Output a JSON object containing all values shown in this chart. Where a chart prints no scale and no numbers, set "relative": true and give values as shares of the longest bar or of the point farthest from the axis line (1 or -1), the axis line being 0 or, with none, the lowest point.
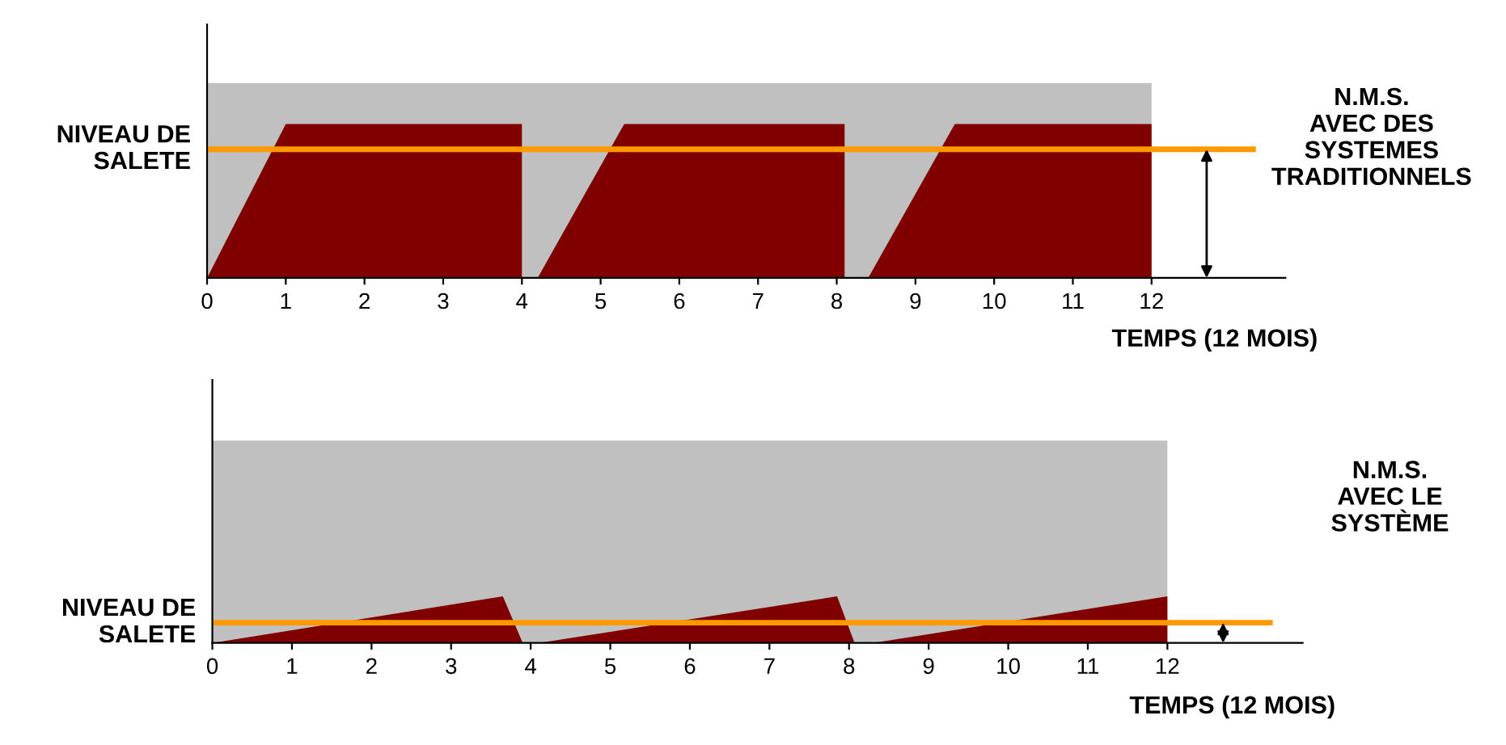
{
  "chart_data": [
    {
      "type": "area",
      "relative": true,
      "xlabel": "TEMPS (12 MOIS)",
      "xlim": [
        0,
        13.7
      ],
      "xticks": [
        0,
        1,
        2,
        3,
        4,
        5,
        6,
        7,
        8,
        9,
        10,
        11,
        12
      ],
      "grid": false,
      "series": [
        {
          "color": "#c0c0c0",
          "x": [
            0,
            12
          ],
          "values": [
            1,
            1
          ]
        },
        {
          "color": "#800000",
          "x": [
            0,
            1.0,
            4.0,
            4.0,
            4.2,
            5.3,
            8.1,
            8.1,
            8.4,
            9.5,
            12,
            12
          ],
          "values": [
            0,
            0.79,
            0.79,
            0,
            0,
            0.79,
            0.79,
            0,
            0,
            0.79,
            0.79,
            0
          ]
        }
      ],
      "ref_lines": [
        {
          "axis": "y",
          "value": 0.66,
          "label": "NIVEAU DE\nSALETE",
          "color": "#ff9900"
        }
      ],
      "annotations": [
        "N.M.S.\nAVEC DES\nSYSTEMES\nTRADITIONNELS"
      ]
    },
    {
      "type": "area",
      "relative": true,
      "xlabel": "TEMPS (12 MOIS)",
      "xlim": [
        0,
        13.7
      ],
      "xticks": [
        0,
        1,
        2,
        3,
        4,
        5,
        6,
        7,
        8,
        9,
        10,
        11,
        12
      ],
      "grid": false,
      "series": [
        {
          "color": "#c0c0c0",
          "x": [
            0,
            12
          ],
          "values": [
            1,
            1
          ]
        },
        {
          "color": "#800000",
          "x": [
            0,
            3.65,
            3.9,
            4.1,
            7.85,
            8.07,
            8.3,
            12,
            12
          ],
          "values": [
            0,
            0.23,
            0,
            0,
            0.23,
            0,
            0,
            0.23,
            0
          ]
        }
      ],
      "ref_lines": [
        {
          "axis": "y",
          "value": 0.1,
          "label": "NIVEAU DE\nSALETE",
          "color": "#ff9900"
        }
      ],
      "annotations": [
        "N.M.S.\nAVEC LE\nSYSTÈME"
      ]
    }
  ]
}
